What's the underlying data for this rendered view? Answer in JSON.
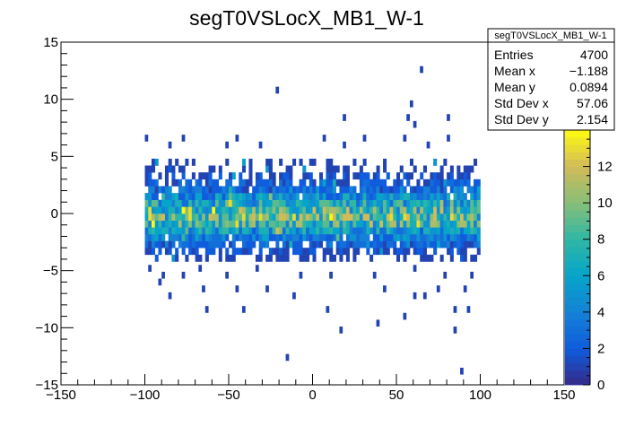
{
  "chart_data": {
    "type": "heatmap",
    "title": "segT0VSLocX_MB1_W-1",
    "xlabel": "",
    "ylabel": "",
    "xlim": [
      -150,
      150
    ],
    "ylim": [
      -15,
      15
    ],
    "x_ticks": [
      -150,
      -100,
      -50,
      0,
      50,
      100,
      150
    ],
    "x_tick_labels": [
      "−150",
      "−100",
      "−50",
      "0",
      "50",
      "100",
      "150"
    ],
    "y_ticks": [
      -15,
      -10,
      -5,
      0,
      5,
      10,
      15
    ],
    "y_tick_labels": [
      "−15",
      "−10",
      "−5",
      "0",
      "5",
      "10",
      "15"
    ],
    "bin_width_x": 2,
    "bin_width_y": 0.6,
    "data_x_range": [
      -100,
      100
    ],
    "zlim": [
      0,
      14
    ],
    "palette_ticks": [
      0,
      2,
      4,
      6,
      8,
      10,
      12
    ],
    "palette_colors": [
      "#352a87",
      "#0f5cdd",
      "#1481d6",
      "#06a4ca",
      "#2eb7a4",
      "#87bf77",
      "#d1bb59",
      "#fefb0e"
    ],
    "row_profile": [
      {
        "y": -3.9,
        "mean": 1.0,
        "occupancy": 0.42
      },
      {
        "y": -3.3,
        "mean": 1.6,
        "occupancy": 0.7
      },
      {
        "y": -2.7,
        "mean": 2.5,
        "occupancy": 0.88
      },
      {
        "y": -2.1,
        "mean": 3.8,
        "occupancy": 0.95
      },
      {
        "y": -1.5,
        "mean": 5.5,
        "occupancy": 1.0
      },
      {
        "y": -0.9,
        "mean": 7.5,
        "occupancy": 1.0
      },
      {
        "y": -0.3,
        "mean": 8.5,
        "occupancy": 1.0
      },
      {
        "y": 0.3,
        "mean": 7.8,
        "occupancy": 1.0
      },
      {
        "y": 0.9,
        "mean": 6.2,
        "occupancy": 1.0
      },
      {
        "y": 1.5,
        "mean": 4.5,
        "occupancy": 0.97
      },
      {
        "y": 2.1,
        "mean": 3.0,
        "occupancy": 0.9
      },
      {
        "y": 2.7,
        "mean": 2.0,
        "occupancy": 0.75
      },
      {
        "y": 3.3,
        "mean": 1.4,
        "occupancy": 0.55
      },
      {
        "y": 3.9,
        "mean": 1.0,
        "occupancy": 0.35
      },
      {
        "y": 4.5,
        "mean": 1.0,
        "occupancy": 0.2
      }
    ],
    "outliers": [
      {
        "x": -99,
        "y": 6.6,
        "count": 1
      },
      {
        "x": -85,
        "y": 6.0,
        "count": 1
      },
      {
        "x": -77,
        "y": 6.6,
        "count": 1
      },
      {
        "x": -45,
        "y": 6.6,
        "count": 1
      },
      {
        "x": -31,
        "y": 6.0,
        "count": 1
      },
      {
        "x": 7,
        "y": 6.6,
        "count": 1
      },
      {
        "x": 31,
        "y": 6.6,
        "count": 1
      },
      {
        "x": 55,
        "y": 6.6,
        "count": 1
      },
      {
        "x": 81,
        "y": 6.6,
        "count": 1
      },
      {
        "x": -51,
        "y": 6.0,
        "count": 1
      },
      {
        "x": 19,
        "y": 6.0,
        "count": 1
      },
      {
        "x": 69,
        "y": 6.0,
        "count": 1
      },
      {
        "x": -21,
        "y": 10.8,
        "count": 1
      },
      {
        "x": 59,
        "y": 9.6,
        "count": 1
      },
      {
        "x": 57,
        "y": 8.4,
        "count": 1
      },
      {
        "x": 19,
        "y": 8.4,
        "count": 1
      },
      {
        "x": 81,
        "y": 8.4,
        "count": 1
      },
      {
        "x": 65,
        "y": 12.6,
        "count": 1
      },
      {
        "x": 61,
        "y": 7.8,
        "count": 1
      },
      {
        "x": -97,
        "y": -4.8,
        "count": 1
      },
      {
        "x": -89,
        "y": -5.4,
        "count": 1
      },
      {
        "x": -77,
        "y": -5.4,
        "count": 1
      },
      {
        "x": -67,
        "y": -4.8,
        "count": 1
      },
      {
        "x": -51,
        "y": -5.4,
        "count": 1
      },
      {
        "x": -33,
        "y": -4.8,
        "count": 1
      },
      {
        "x": -7,
        "y": -5.4,
        "count": 1
      },
      {
        "x": 11,
        "y": -5.4,
        "count": 1
      },
      {
        "x": 37,
        "y": -5.4,
        "count": 1
      },
      {
        "x": 61,
        "y": -4.8,
        "count": 1
      },
      {
        "x": 79,
        "y": -5.4,
        "count": 1
      },
      {
        "x": 95,
        "y": -5.4,
        "count": 1
      },
      {
        "x": -91,
        "y": -6.0,
        "count": 1
      },
      {
        "x": -65,
        "y": -6.6,
        "count": 1
      },
      {
        "x": -45,
        "y": -6.6,
        "count": 1
      },
      {
        "x": -27,
        "y": -6.6,
        "count": 1
      },
      {
        "x": 43,
        "y": -6.6,
        "count": 1
      },
      {
        "x": 61,
        "y": -7.2,
        "count": 1
      },
      {
        "x": 75,
        "y": -6.6,
        "count": 1
      },
      {
        "x": 91,
        "y": -6.6,
        "count": 1
      },
      {
        "x": -85,
        "y": -7.2,
        "count": 1
      },
      {
        "x": -11,
        "y": -7.2,
        "count": 1
      },
      {
        "x": 67,
        "y": -7.2,
        "count": 1
      },
      {
        "x": -63,
        "y": -8.4,
        "count": 1
      },
      {
        "x": -41,
        "y": -8.4,
        "count": 1
      },
      {
        "x": 9,
        "y": -8.4,
        "count": 1
      },
      {
        "x": 55,
        "y": -9.0,
        "count": 1
      },
      {
        "x": 85,
        "y": -8.4,
        "count": 1
      },
      {
        "x": 93,
        "y": -8.4,
        "count": 1
      },
      {
        "x": 39,
        "y": -9.6,
        "count": 1
      },
      {
        "x": 17,
        "y": -10.2,
        "count": 1
      },
      {
        "x": 85,
        "y": -10.2,
        "count": 1
      },
      {
        "x": -15,
        "y": -12.6,
        "count": 1
      },
      {
        "x": 89,
        "y": -13.8,
        "count": 1
      }
    ]
  },
  "stats_box": {
    "name": "segT0VSLocX_MB1_W-1",
    "rows": [
      {
        "label": "Entries",
        "value": "4700"
      },
      {
        "label": "Mean x",
        "value": "−1.188"
      },
      {
        "label": "Mean y",
        "value": "0.0894"
      },
      {
        "label": "Std Dev x",
        "value": "57.06"
      },
      {
        "label": "Std Dev y",
        "value": "2.154"
      }
    ]
  }
}
